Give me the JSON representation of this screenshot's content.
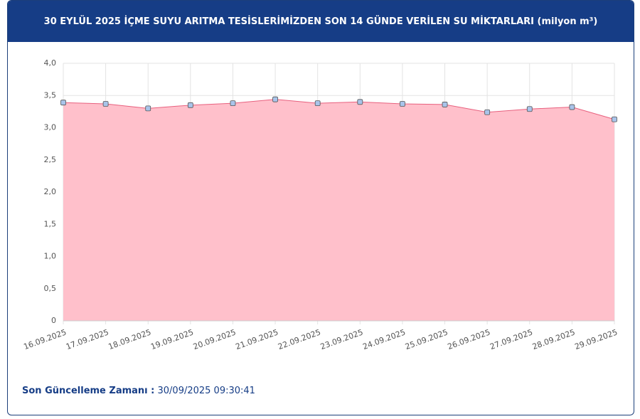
{
  "chart_data": {
    "type": "area",
    "title": "30 EYLÜL 2025 İÇME SUYU ARITMA TESİSLERİMİZDEN SON 14 GÜNDE VERİLEN SU MİKTARLARI (milyon m³)",
    "categories": [
      "16.09.2025",
      "17.09.2025",
      "18.09.2025",
      "19.09.2025",
      "20.09.2025",
      "21.09.2025",
      "22.09.2025",
      "23.09.2025",
      "24.09.2025",
      "25.09.2025",
      "26.09.2025",
      "27.09.2025",
      "28.09.2025",
      "29.09.2025"
    ],
    "series": [
      {
        "color": "#e8607e",
        "fill": "#ffc0cb",
        "marker_color": "#a9c4ea",
        "values": [
          3.39,
          3.37,
          3.3,
          3.35,
          3.38,
          3.44,
          3.38,
          3.4,
          3.37,
          3.36,
          3.24,
          3.29,
          3.32,
          3.13
        ]
      }
    ],
    "ylim": [
      0,
      4
    ],
    "yticks": [
      0,
      {
        "value": 0.5,
        "label": "0,5"
      },
      {
        "value": 1,
        "label": "1,0"
      },
      {
        "value": 1.5,
        "label": "1,5"
      },
      {
        "value": 2,
        "label": "2,0"
      },
      {
        "value": 2.5,
        "label": "2,5"
      },
      {
        "value": 3,
        "label": "3,0"
      },
      {
        "value": 3.5,
        "label": "3,5"
      },
      {
        "value": 4,
        "label": "4,0"
      }
    ],
    "grid": true
  },
  "footer": {
    "label": "Son Güncelleme Zamanı :",
    "value": "30/09/2025 09:30:41"
  }
}
